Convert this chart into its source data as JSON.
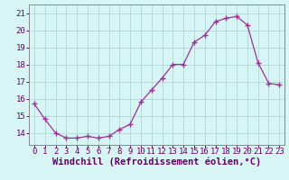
{
  "x": [
    0,
    1,
    2,
    3,
    4,
    5,
    6,
    7,
    8,
    9,
    10,
    11,
    12,
    13,
    14,
    15,
    16,
    17,
    18,
    19,
    20,
    21,
    22,
    23
  ],
  "y": [
    15.7,
    14.8,
    14.0,
    13.7,
    13.7,
    13.8,
    13.7,
    13.8,
    14.2,
    14.5,
    15.8,
    16.5,
    17.2,
    18.0,
    18.0,
    19.3,
    19.7,
    20.5,
    20.7,
    20.8,
    20.3,
    18.1,
    16.9,
    16.8
  ],
  "line_color": "#993399",
  "marker": "+",
  "marker_size": 4,
  "background_color": "#d8f5f5",
  "grid_color": "#b8dada",
  "axis_label": "Windchill (Refroidissement éolien,°C)",
  "xlabel_fontsize": 7.5,
  "ytick_labels": [
    "14",
    "15",
    "16",
    "17",
    "18",
    "19",
    "20",
    "21"
  ],
  "ytick_values": [
    14,
    15,
    16,
    17,
    18,
    19,
    20,
    21
  ],
  "xtick_labels": [
    "0",
    "1",
    "2",
    "3",
    "4",
    "5",
    "6",
    "7",
    "8",
    "9",
    "10",
    "11",
    "12",
    "13",
    "14",
    "15",
    "16",
    "17",
    "18",
    "19",
    "20",
    "21",
    "22",
    "23"
  ],
  "ylim": [
    13.3,
    21.5
  ],
  "xlim": [
    -0.5,
    23.5
  ],
  "tick_fontsize": 6.5,
  "spine_color": "#888888"
}
